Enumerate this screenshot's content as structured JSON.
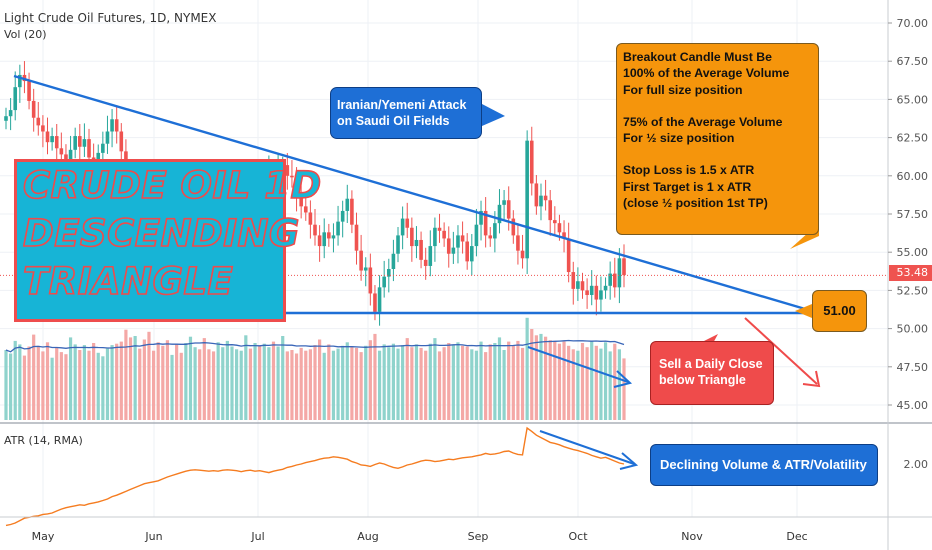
{
  "header": {
    "symbol_line": "Light Crude Oil Futures, 1D, NYMEX",
    "vol_label": "Vol (20)",
    "atr_label": "ATR (14, RMA)"
  },
  "last_price_tag": "53.48",
  "annotations": {
    "title_lines": [
      "CRUDE OIL 1D",
      "DESCENDING",
      "TRIANGLE"
    ],
    "attack_lines": [
      "Iranian/Yemeni Attack",
      "on Saudi Oil Fields"
    ],
    "rules_lines": [
      "Breakout Candle Must Be",
      "100% of the Average Volume",
      "For full size position",
      "",
      "75% of the Average Volume",
      "For ½ size position",
      "",
      "Stop Loss is 1.5 x ATR",
      "First Target is 1 x ATR",
      "(close ½ position 1st TP)"
    ],
    "support_price": "51.00",
    "sell_lines": [
      "Sell a Daily Close",
      "below Triangle"
    ],
    "declining_text": "Declining Volume & ATR/Volatility"
  },
  "colors": {
    "up": "#26a69a",
    "down": "#ef5350",
    "trendline": "#1e6fd6",
    "ma": "#3a66b8",
    "atr": "#f57c20",
    "annot_orange": "#f5950c",
    "annot_blue": "#1e6fd6",
    "annot_red": "#ef4b4b",
    "title_bg": "#17b4d6"
  },
  "chart_data": {
    "type": "candlestick",
    "price_axis": {
      "ticks": [
        "70.00",
        "67.50",
        "65.00",
        "62.50",
        "60.00",
        "57.50",
        "55.00",
        "52.50",
        "50.00",
        "47.50",
        "45.00"
      ],
      "range": [
        43.5,
        71.5
      ]
    },
    "atr_axis": {
      "ticks": [
        "2.00"
      ]
    },
    "x_axis": {
      "months": [
        "May",
        "Jun",
        "Jul",
        "Aug",
        "Sep",
        "Oct",
        "Nov",
        "Dec"
      ]
    },
    "closes": [
      63.9,
      64.3,
      65.8,
      66.6,
      66.2,
      64.9,
      63.8,
      63.3,
      62.9,
      62.2,
      62.6,
      61.8,
      61.4,
      60.9,
      61.7,
      62.6,
      61.9,
      62.4,
      61.2,
      60.7,
      61.5,
      62.1,
      62.9,
      63.7,
      62.9,
      61.6,
      59.9,
      58.3,
      58.7,
      58.1,
      57.6,
      56.7,
      55.2,
      54.1,
      53.4,
      52.4,
      53.6,
      52.6,
      51.7,
      52.1,
      53.2,
      54.9,
      53.8,
      53.2,
      52.4,
      51.9,
      53.9,
      54.7,
      54.9,
      55.7,
      56.4,
      57.1,
      58.0,
      57.9,
      58.5,
      58.1,
      59.2,
      60.3,
      59.8,
      60.5,
      60.7,
      60.0,
      59.9,
      58.7,
      58.0,
      57.6,
      56.8,
      56.1,
      55.4,
      56.3,
      55.9,
      56.1,
      57.0,
      57.7,
      58.5,
      56.8,
      55.1,
      53.8,
      54.0,
      52.3,
      51.1,
      52.7,
      53.4,
      53.9,
      54.9,
      56.1,
      57.2,
      56.6,
      55.4,
      55.8,
      54.5,
      54.1,
      55.4,
      56.6,
      56.4,
      55.9,
      54.9,
      55.3,
      56.1,
      55.7,
      54.4,
      55.4,
      56.8,
      57.7,
      56.1,
      55.9,
      56.9,
      58.1,
      58.4,
      57.2,
      56.1,
      55.1,
      54.6,
      62.3,
      59.5,
      58.0,
      58.7,
      58.4,
      57.1,
      56.9,
      56.3,
      55.9,
      53.7,
      52.6,
      53.1,
      52.5,
      52.2,
      52.8,
      51.9,
      52.5,
      52.8,
      53.6,
      52.7,
      54.6,
      53.5
    ],
    "volumes": [
      100,
      95,
      113,
      108,
      92,
      105,
      122,
      106,
      98,
      111,
      89,
      104,
      97,
      94,
      118,
      108,
      100,
      107,
      99,
      110,
      96,
      91,
      102,
      107,
      109,
      112,
      129,
      118,
      120,
      102,
      115,
      126,
      99,
      111,
      106,
      114,
      93,
      108,
      96,
      110,
      119,
      104,
      101,
      117,
      101,
      98,
      111,
      104,
      113,
      105,
      101,
      99,
      121,
      102,
      110,
      106,
      109,
      104,
      112,
      105,
      120,
      98,
      100,
      95,
      103,
      99,
      101,
      107,
      115,
      96,
      108,
      99,
      102,
      106,
      111,
      105,
      103,
      97,
      106,
      114,
      123,
      99,
      108,
      104,
      109,
      102,
      107,
      117,
      104,
      108,
      103,
      99,
      109,
      117,
      98,
      104,
      110,
      107,
      111,
      106,
      105,
      101,
      99,
      112,
      97,
      108,
      110,
      118,
      100,
      112,
      106,
      113,
      103,
      146,
      130,
      121,
      123,
      119,
      114,
      112,
      109,
      112,
      106,
      101,
      99,
      110,
      104,
      112,
      106,
      102,
      111,
      98,
      109,
      101,
      88
    ],
    "atr": [
      0.72,
      0.74,
      0.77,
      0.82,
      0.87,
      0.89,
      0.91,
      0.92,
      0.95,
      0.96,
      0.98,
      1.02,
      1.06,
      1.09,
      1.11,
      1.13,
      1.15,
      1.14,
      1.17,
      1.19,
      1.21,
      1.24,
      1.27,
      1.32,
      1.35,
      1.39,
      1.43,
      1.47,
      1.51,
      1.55,
      1.59,
      1.61,
      1.63,
      1.65,
      1.69,
      1.73,
      1.76,
      1.79,
      1.82,
      1.85,
      1.87,
      1.88,
      1.87,
      1.86,
      1.85,
      1.86,
      1.85,
      1.87,
      1.88,
      1.87,
      1.86,
      1.84,
      1.86,
      1.87,
      1.85,
      1.86,
      1.84,
      1.82,
      1.85,
      1.87,
      1.89,
      1.93,
      1.95,
      1.98,
      2.0,
      2.03,
      2.05,
      2.07,
      2.1,
      2.12,
      2.13,
      2.15,
      2.14,
      2.12,
      2.1,
      2.05,
      2.02,
      1.98,
      1.97,
      1.95,
      1.99,
      2.02,
      2.0,
      1.96,
      1.93,
      1.91,
      1.94,
      1.98,
      2.0,
      2.03,
      2.06,
      2.08,
      2.07,
      2.05,
      2.06,
      2.08,
      2.1,
      2.09,
      2.11,
      2.13,
      2.14,
      2.15,
      2.17,
      2.19,
      2.22,
      2.2,
      2.21,
      2.23,
      2.26,
      2.27,
      2.23,
      2.2,
      2.19,
      2.75,
      2.68,
      2.6,
      2.55,
      2.5,
      2.45,
      2.43,
      2.4,
      2.36,
      2.33,
      2.3,
      2.28,
      2.25,
      2.22,
      2.18,
      2.15,
      2.12,
      2.14,
      2.1,
      2.06,
      2.02,
      2.0
    ]
  }
}
